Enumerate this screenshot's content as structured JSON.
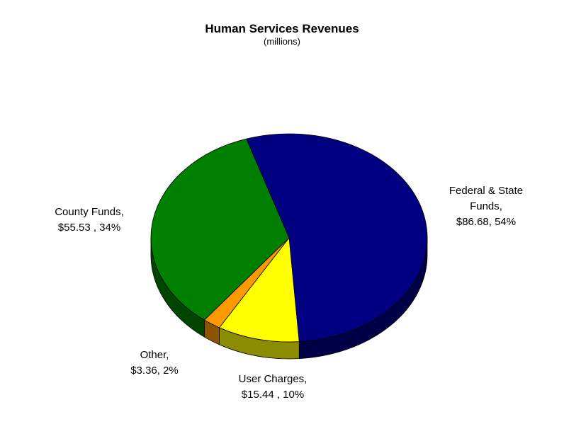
{
  "chart_data": {
    "type": "pie",
    "title": "Human Services Revenues",
    "subtitle": "(millions)",
    "slices": [
      {
        "name": "Federal & State Funds",
        "label_lines": [
          "Federal & State",
          "Funds,",
          "$86.68, 54%"
        ],
        "value": 86.68,
        "percent": 54,
        "color": "#000080"
      },
      {
        "name": "User Charges",
        "label_lines": [
          "User Charges,",
          "$15.44 , 10%"
        ],
        "value": 15.44,
        "percent": 10,
        "color": "#ffff00"
      },
      {
        "name": "Other",
        "label_lines": [
          "Other,",
          "$3.36, 2%"
        ],
        "value": 3.36,
        "percent": 2,
        "color": "#ff9900"
      },
      {
        "name": "County Funds",
        "label_lines": [
          "County Funds,",
          "$55.53 , 34%"
        ],
        "value": 55.53,
        "percent": 34,
        "color": "#008000"
      }
    ]
  }
}
